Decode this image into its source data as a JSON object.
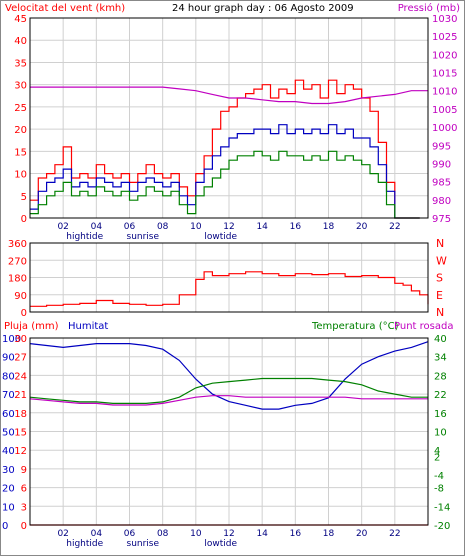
{
  "header": {
    "wind_title": "Velocitat del vent (kmh)",
    "title": "24 hour graph day : 06 Agosto 2009",
    "pressure_title": "Pressió (mb)"
  },
  "colors": {
    "wind": "#ff0000",
    "gust_line": "#ff0000",
    "avg_line": "#0000c0",
    "min_line": "#008000",
    "pressure": "#c000c0",
    "direction": "#ff0000",
    "rain": "#ff0000",
    "humidity": "#0000c0",
    "temperature": "#008000",
    "dewpoint": "#c000c0",
    "grid": "#d0d0d0",
    "frame": "#000000"
  },
  "x_axis": {
    "ticks": [
      "02",
      "04",
      "06",
      "08",
      "10",
      "12",
      "14",
      "16",
      "18",
      "20",
      "22"
    ],
    "events": [
      {
        "label": "hightide",
        "hour": 3.3
      },
      {
        "label": "sunrise",
        "hour": 6.8
      },
      {
        "label": "lowtide",
        "hour": 11.5
      }
    ],
    "range": [
      0,
      24
    ]
  },
  "chart_data": [
    {
      "type": "line",
      "panel": "wind",
      "xlabel": "",
      "ylabel": "Velocitat del vent (kmh)",
      "y2label": "Pressió (mb)",
      "xlim": [
        0,
        24
      ],
      "ylim": [
        0,
        45
      ],
      "y2lim": [
        975,
        1030
      ],
      "yticks": [
        0,
        5,
        10,
        15,
        20,
        25,
        30,
        35,
        40,
        45
      ],
      "y2ticks": [
        975,
        980,
        985,
        990,
        995,
        1000,
        1005,
        1010,
        1015,
        1020,
        1025,
        1030
      ],
      "grid": true,
      "series": [
        {
          "key": "gust",
          "axis": "left",
          "x": [
            0,
            0.5,
            1,
            1.5,
            2,
            2.5,
            3,
            3.5,
            4,
            4.5,
            5,
            5.5,
            6,
            6.5,
            7,
            7.5,
            8,
            8.5,
            9,
            9.5,
            10,
            10.5,
            11,
            11.5,
            12,
            12.5,
            13,
            13.5,
            14,
            14.5,
            15,
            15.5,
            16,
            16.5,
            17,
            17.5,
            18,
            18.5,
            19,
            19.5,
            20,
            20.5,
            21,
            21.5,
            22,
            22.5,
            23,
            23.5
          ],
          "y": [
            4,
            9,
            10,
            12,
            16,
            9,
            10,
            9,
            12,
            10,
            9,
            10,
            8,
            10,
            12,
            10,
            9,
            10,
            7,
            5,
            10,
            14,
            20,
            24,
            25,
            27,
            28,
            29,
            30,
            27,
            29,
            28,
            31,
            29,
            30,
            27,
            31,
            28,
            30,
            29,
            27,
            24,
            17,
            8,
            0,
            0,
            0,
            0
          ]
        },
        {
          "key": "average",
          "axis": "left",
          "x": [
            0,
            0.5,
            1,
            1.5,
            2,
            2.5,
            3,
            3.5,
            4,
            4.5,
            5,
            5.5,
            6,
            6.5,
            7,
            7.5,
            8,
            8.5,
            9,
            9.5,
            10,
            10.5,
            11,
            11.5,
            12,
            12.5,
            13,
            13.5,
            14,
            14.5,
            15,
            15.5,
            16,
            16.5,
            17,
            17.5,
            18,
            18.5,
            19,
            19.5,
            20,
            20.5,
            21,
            21.5,
            22,
            22.5,
            23,
            23.5
          ],
          "y": [
            2,
            6,
            8,
            9,
            11,
            7,
            8,
            7,
            9,
            8,
            7,
            8,
            6,
            8,
            9,
            8,
            7,
            8,
            5,
            3,
            8,
            11,
            14,
            16,
            18,
            19,
            19,
            20,
            20,
            19,
            21,
            19,
            20,
            19,
            20,
            19,
            21,
            19,
            20,
            18,
            18,
            16,
            12,
            6,
            0,
            0,
            0,
            0
          ]
        },
        {
          "key": "minimum",
          "axis": "left",
          "x": [
            0,
            0.5,
            1,
            1.5,
            2,
            2.5,
            3,
            3.5,
            4,
            4.5,
            5,
            5.5,
            6,
            6.5,
            7,
            7.5,
            8,
            8.5,
            9,
            9.5,
            10,
            10.5,
            11,
            11.5,
            12,
            12.5,
            13,
            13.5,
            14,
            14.5,
            15,
            15.5,
            16,
            16.5,
            17,
            17.5,
            18,
            18.5,
            19,
            19.5,
            20,
            20.5,
            21,
            21.5,
            22,
            22.5,
            23,
            23.5
          ],
          "y": [
            1,
            3,
            5,
            6,
            8,
            5,
            6,
            5,
            7,
            6,
            5,
            6,
            4,
            5,
            7,
            6,
            5,
            6,
            3,
            1,
            5,
            7,
            9,
            11,
            13,
            14,
            14,
            15,
            14,
            13,
            15,
            14,
            14,
            13,
            14,
            13,
            15,
            13,
            14,
            13,
            12,
            10,
            8,
            3,
            0,
            0,
            0,
            0
          ]
        },
        {
          "key": "pressure",
          "axis": "right",
          "x": [
            0,
            1,
            2,
            3,
            4,
            5,
            6,
            7,
            8,
            9,
            10,
            11,
            12,
            13,
            14,
            15,
            16,
            17,
            18,
            19,
            20,
            21,
            22,
            23,
            24
          ],
          "y": [
            1011,
            1011,
            1011,
            1011,
            1011,
            1011,
            1011,
            1011,
            1011,
            1010.5,
            1010,
            1009,
            1008,
            1008,
            1007.5,
            1007,
            1007,
            1006.5,
            1006.5,
            1007,
            1008,
            1008.5,
            1009,
            1010,
            1010
          ]
        }
      ]
    },
    {
      "type": "line",
      "panel": "direction",
      "xlim": [
        0,
        24
      ],
      "ylim": [
        0,
        360
      ],
      "yticks": [
        0,
        90,
        180,
        270,
        360
      ],
      "right_labels": [
        "N",
        "W",
        "S",
        "E",
        "N"
      ],
      "grid": true,
      "series": [
        {
          "key": "wind_direction",
          "x": [
            0,
            1,
            2,
            3,
            4,
            5,
            6,
            7,
            8,
            9,
            10,
            10.5,
            11,
            12,
            13,
            14,
            15,
            16,
            17,
            18,
            19,
            20,
            21,
            22,
            22.5,
            23,
            23.5,
            24
          ],
          "y": [
            30,
            35,
            40,
            45,
            60,
            45,
            40,
            35,
            40,
            90,
            170,
            210,
            190,
            200,
            210,
            200,
            190,
            200,
            195,
            200,
            185,
            190,
            180,
            150,
            140,
            110,
            90,
            40
          ]
        }
      ]
    },
    {
      "type": "line",
      "panel": "climate",
      "labels": {
        "rain": "Pluja (mm)",
        "humidity": "Humitat",
        "temperature": "Temperatura (°C)",
        "dewpoint": "Punt rosada"
      },
      "xlim": [
        0,
        24
      ],
      "humidity_lim": [
        0,
        100
      ],
      "humidity_ticks": [
        0,
        10,
        20,
        30,
        40,
        50,
        60,
        70,
        80,
        90,
        100
      ],
      "rain_lim": [
        0,
        30
      ],
      "rain_ticks": [
        0,
        3,
        6,
        9,
        12,
        15,
        18,
        21,
        24,
        27,
        30
      ],
      "temp_lim": [
        -20,
        40
      ],
      "temp_ticks": [
        -20,
        -14,
        -8,
        -4,
        2,
        4,
        10,
        16,
        22,
        28,
        34,
        40
      ],
      "grid": true,
      "series": [
        {
          "key": "rain",
          "axis": "rain",
          "x": [
            0,
            24
          ],
          "y": [
            0,
            0
          ]
        },
        {
          "key": "humidity",
          "axis": "humidity",
          "x": [
            0,
            1,
            2,
            3,
            4,
            5,
            6,
            7,
            8,
            9,
            10,
            11,
            12,
            13,
            14,
            15,
            16,
            17,
            18,
            19,
            20,
            21,
            22,
            23,
            24
          ],
          "y": [
            97,
            96,
            95,
            96,
            97,
            97,
            97,
            96,
            94,
            88,
            78,
            70,
            66,
            64,
            62,
            62,
            64,
            65,
            68,
            78,
            86,
            90,
            93,
            95,
            98
          ]
        },
        {
          "key": "temperature",
          "axis": "temp",
          "x": [
            0,
            1,
            2,
            3,
            4,
            5,
            6,
            7,
            8,
            9,
            10,
            11,
            12,
            13,
            14,
            15,
            16,
            17,
            18,
            19,
            20,
            21,
            22,
            23,
            24
          ],
          "y": [
            21,
            20.5,
            20,
            19.5,
            19.5,
            19,
            19,
            19,
            19.5,
            21,
            24,
            25.5,
            26,
            26.5,
            27,
            27,
            27,
            27,
            26.5,
            26,
            25,
            23,
            22,
            21,
            21
          ]
        },
        {
          "key": "dewpoint",
          "axis": "temp",
          "x": [
            0,
            1,
            2,
            3,
            4,
            5,
            6,
            7,
            8,
            9,
            10,
            11,
            12,
            13,
            14,
            15,
            16,
            17,
            18,
            19,
            20,
            21,
            22,
            23,
            24
          ],
          "y": [
            20.5,
            20,
            19.5,
            19,
            19,
            18.5,
            18.5,
            18.5,
            19,
            20,
            21,
            21.5,
            21.5,
            21,
            21,
            21,
            21,
            21,
            21,
            21,
            20.5,
            20.5,
            20.5,
            20.5,
            20.5
          ]
        }
      ]
    }
  ]
}
